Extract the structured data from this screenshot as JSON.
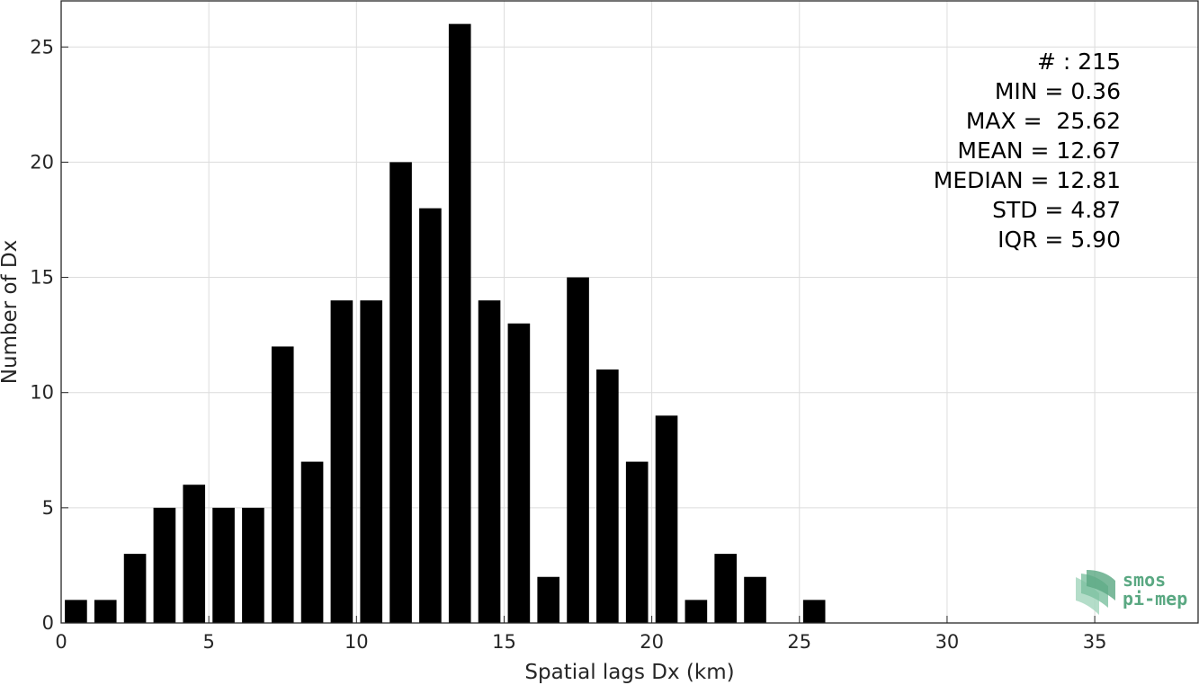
{
  "chart_data": {
    "type": "bar",
    "title": "",
    "xlabel": "Spatial lags Dx (km)",
    "ylabel": "Number of Dx",
    "xlim": [
      0,
      38.5
    ],
    "ylim": [
      0,
      27
    ],
    "grid": true,
    "x_ticks": [
      0,
      5,
      10,
      15,
      20,
      25,
      30,
      35
    ],
    "x_tick_labels": [
      "0",
      "5",
      "10",
      "15",
      "20",
      "25",
      "30",
      "35"
    ],
    "y_ticks": [
      0,
      5,
      10,
      15,
      20,
      25
    ],
    "y_tick_labels": [
      "0",
      "5",
      "10",
      "15",
      "20",
      "25"
    ],
    "bar_width": 0.75,
    "bar_color": "#000000",
    "x": [
      0.5,
      1.5,
      2.5,
      3.5,
      4.5,
      5.5,
      6.5,
      7.5,
      8.5,
      9.5,
      10.5,
      11.5,
      12.5,
      13.5,
      14.5,
      15.5,
      16.5,
      17.5,
      18.5,
      19.5,
      20.5,
      21.5,
      22.5,
      23.5,
      24.5,
      25.5
    ],
    "values": [
      1,
      1,
      3,
      5,
      6,
      5,
      5,
      12,
      7,
      14,
      14,
      20,
      18,
      26,
      14,
      13,
      2,
      15,
      11,
      7,
      9,
      1,
      3,
      2,
      0,
      1
    ]
  },
  "stats": [
    "# : 215",
    "MIN = 0.36",
    "MAX =  25.62",
    "MEAN = 12.67",
    "MEDIAN = 12.81",
    "STD = 4.87",
    "IQR = 5.90"
  ],
  "logo": {
    "line1": "smos",
    "line2": "pi-mep",
    "color": "#5aa882"
  }
}
